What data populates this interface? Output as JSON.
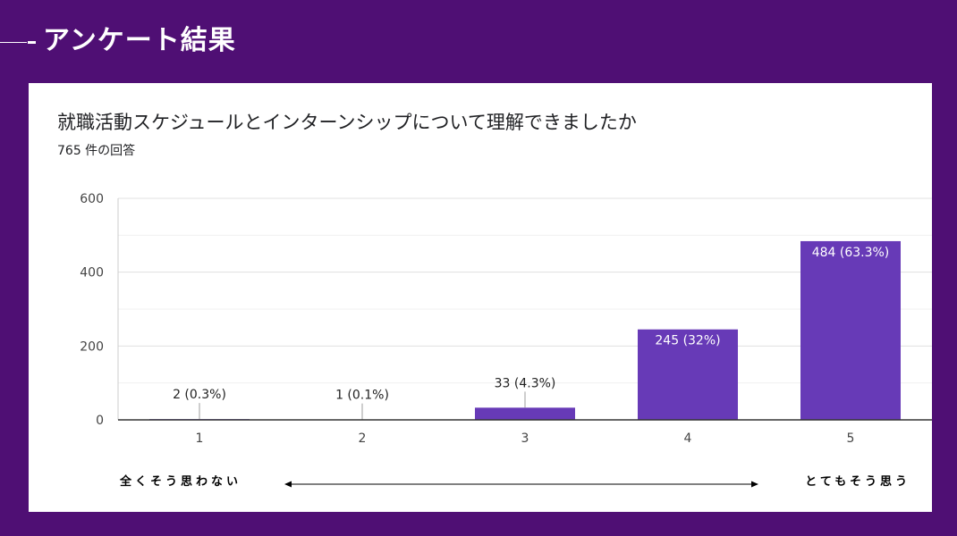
{
  "slide": {
    "title": "アンケート結果"
  },
  "card": {
    "question": "就職活動スケジュールとインターンシップについて理解できましたか",
    "response_count": "765 件の回答",
    "scale_left_label": "全くそう思わない",
    "scale_right_label": "とてもそう思う"
  },
  "colors": {
    "background": "#4f0f74",
    "bar": "#673ab7"
  },
  "chart_data": {
    "type": "bar",
    "categories": [
      "1",
      "2",
      "3",
      "4",
      "5"
    ],
    "values": [
      2,
      1,
      33,
      245,
      484
    ],
    "data_labels": [
      "2 (0.3%)",
      "1 (0.1%)",
      "33 (4.3%)",
      "245 (32%)",
      "484 (63.3%)"
    ],
    "y_ticks": [
      "0",
      "200",
      "400",
      "600"
    ],
    "ylim": [
      0,
      600
    ],
    "grid": true,
    "title": "",
    "xlabel": "",
    "ylabel": ""
  }
}
